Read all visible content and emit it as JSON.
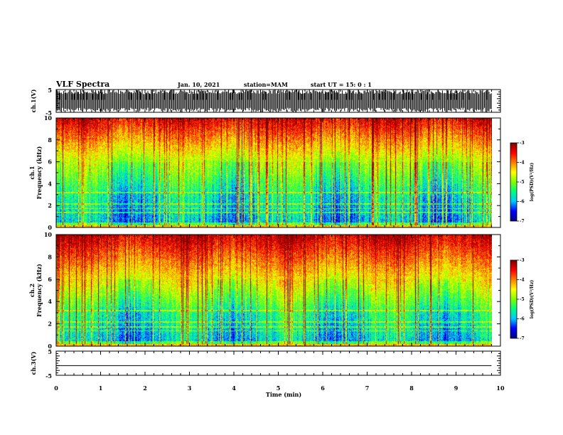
{
  "header": {
    "title": "VLF Spectra",
    "date": "Jan. 10, 2021",
    "station": "station=MAM",
    "start": "start  UT =   15: 0  : 1"
  },
  "chart_data": {
    "type": "heatmap",
    "xlabel": "Time  (min)",
    "xlim": [
      0,
      10
    ],
    "x_ticks": [
      "0",
      "1",
      "2",
      "3",
      "4",
      "5",
      "6",
      "7",
      "8",
      "9",
      "10"
    ],
    "panels": [
      {
        "name": "ch1-waveform",
        "type": "line",
        "ylabel": "ch.1(V)",
        "ylim": [
          -5,
          5
        ],
        "y_ticks": [
          "5",
          "-5"
        ],
        "data_end_min": 9.8
      },
      {
        "name": "ch1-spectrogram",
        "type": "heatmap",
        "ylabel_line1": "ch.1",
        "ylabel_line2": "Frequency  (kHz)",
        "ylim": [
          0,
          10
        ],
        "y_ticks": [
          "0",
          "2",
          "4",
          "6",
          "8",
          "10"
        ],
        "data_end_min": 9.8,
        "colorbar_label": "log(PSD)(V²/Hz)",
        "colorbar_range": [
          -7,
          -3
        ],
        "colorbar_ticks": [
          "-3",
          "-4",
          "-5",
          "-6",
          "-7"
        ]
      },
      {
        "name": "ch2-spectrogram",
        "type": "heatmap",
        "ylabel_line1": "ch.2",
        "ylabel_line2": "Frequency  (kHz)",
        "ylim": [
          0,
          10
        ],
        "y_ticks": [
          "0",
          "2",
          "4",
          "6",
          "8",
          "10"
        ],
        "data_end_min": 9.8,
        "colorbar_label": "log(PSD)(V²/Hz)",
        "colorbar_range": [
          -7,
          -3
        ],
        "colorbar_ticks": [
          "-3",
          "-4",
          "-5",
          "-6",
          "-7"
        ]
      },
      {
        "name": "ch3-waveform",
        "type": "line",
        "ylabel": "ch.3(V)",
        "ylim": [
          -5,
          5
        ],
        "y_ticks": [
          "5",
          "-5"
        ],
        "constant_value": -1.0,
        "data_end_min": 9.8
      }
    ],
    "colormap": [
      "#00007f",
      "#0000ff",
      "#00c8ff",
      "#00ff80",
      "#80ff00",
      "#ffff00",
      "#ff8000",
      "#ff0000",
      "#7f0000"
    ]
  }
}
